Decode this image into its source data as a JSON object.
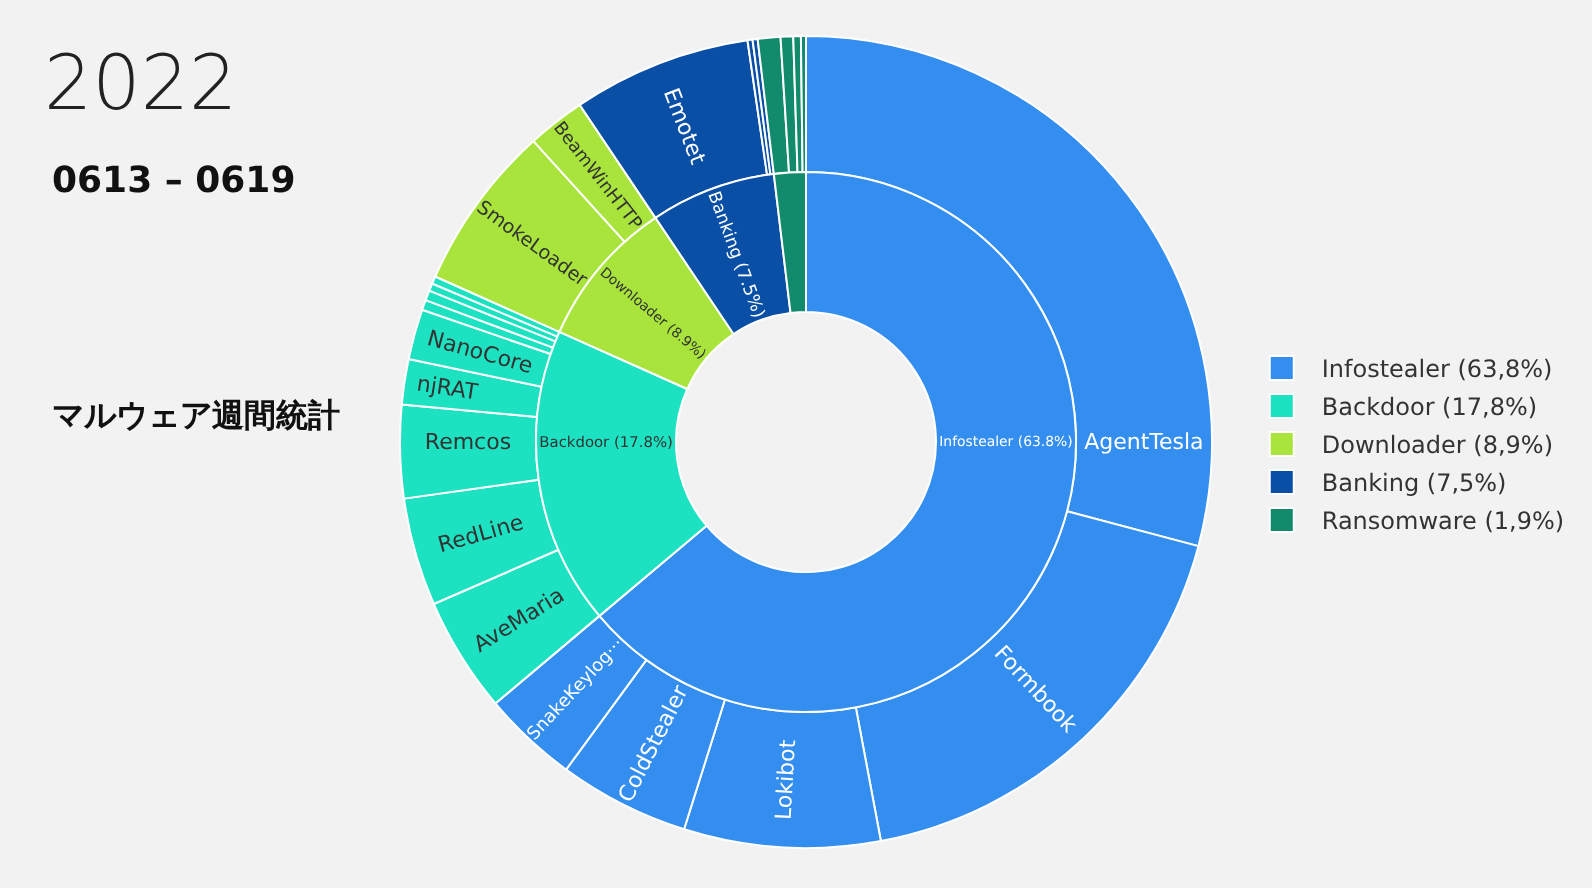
{
  "chart_data": [
    {
      "type": "donut",
      "title": "2022",
      "subtitle": "0613 – 0619",
      "annotations": [
        "マルウェア週間統計"
      ],
      "legend": "right",
      "data_labels": false,
      "categories": [
        "Infostealer (63,8%)",
        "Backdoor (17,8%)",
        "Downloader (8,9%)",
        "Banking (7,5%)",
        "Ransomware (1,9%)"
      ],
      "values": [
        63.8,
        17.8,
        8.9,
        7.5,
        1.9
      ],
      "value_labels": [
        "Infostealer (63.8%)",
        "Backdoor (17.8%)",
        "Downloader (8.9%)",
        "Banking (7.5%)",
        null
      ],
      "colors": [
        "#348ef0",
        "#1de2c2",
        "#a8e43b",
        "#0a4fa6",
        "#128a6c"
      ]
    },
    {
      "type": "donut",
      "legend": false,
      "categories": [
        "AgentTesla",
        "Formbook",
        "Lokibot",
        "ColdStealer",
        "SnakeKeylog···",
        "AveMaria",
        "RedLine",
        "Remcos",
        "njRAT",
        "NanoCore",
        null,
        null,
        null,
        null,
        "SmokeLoader",
        "BeamWinHTTP",
        "Emotet",
        null,
        null,
        null,
        null,
        null,
        null
      ],
      "values": [
        29.1,
        17.9,
        7.8,
        5.2,
        3.8,
        4.6,
        4.3,
        3.7,
        1.8,
        2.0,
        0.4,
        0.4,
        0.3,
        0.3,
        6.6,
        2.3,
        7.1,
        0.2,
        0.2,
        0.9,
        0.5,
        0.3,
        0.2
      ],
      "colors": [
        "#348ef0",
        "#348ef0",
        "#348ef0",
        "#348ef0",
        "#348ef0",
        "#1de2c2",
        "#1de2c2",
        "#1de2c2",
        "#1de2c2",
        "#1de2c2",
        "#1de2c2",
        "#1de2c2",
        "#1de2c2",
        "#1de2c2",
        "#a8e43b",
        "#a8e43b",
        "#0a4fa6",
        "#0a4fa6",
        "#0a4fa6",
        "#128a6c",
        "#128a6c",
        "#128a6c",
        "#128a6c"
      ]
    }
  ]
}
